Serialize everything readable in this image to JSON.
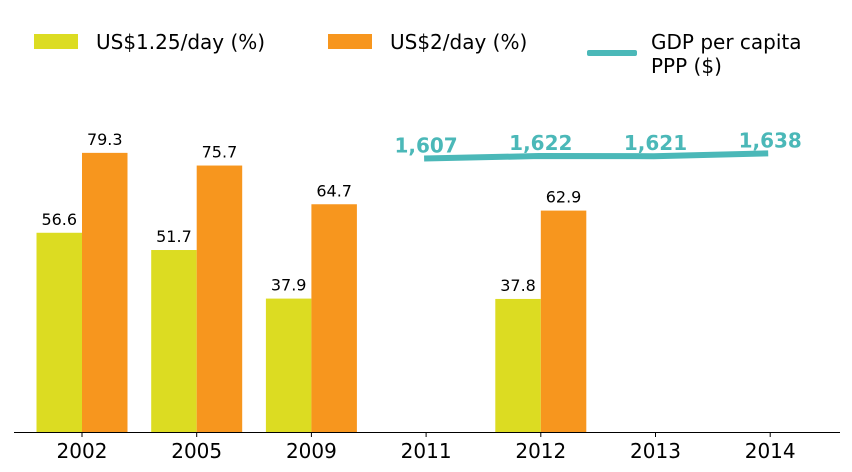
{
  "chart_data": {
    "type": "bar",
    "categories": [
      "2002",
      "2005",
      "2009",
      "2011",
      "2012",
      "2013",
      "2014"
    ],
    "series": [
      {
        "name": "US$1.25/day (%)",
        "kind": "bar",
        "color": "#dcdc22",
        "values": [
          56.6,
          51.7,
          37.9,
          null,
          37.8,
          null,
          null
        ],
        "labels": [
          "56.6",
          "51.7",
          "37.9",
          "",
          "37.8",
          "",
          ""
        ]
      },
      {
        "name": "US$2/day (%)",
        "kind": "bar",
        "color": "#f7961e",
        "values": [
          79.3,
          75.7,
          64.7,
          null,
          62.9,
          null,
          null
        ],
        "labels": [
          "79.3",
          "75.7",
          "64.7",
          "",
          "62.9",
          "",
          ""
        ]
      },
      {
        "name": "GDP per capita\nPPP ($)",
        "kind": "line",
        "color": "#4bb8b8",
        "values": [
          null,
          null,
          null,
          1607,
          1622,
          1621,
          1638
        ],
        "labels": [
          "",
          "",
          "",
          "1,607",
          "1,622",
          "1,621",
          "1,638"
        ]
      }
    ],
    "bar_ylim": [
      0,
      120
    ],
    "line_ylim": [
      1000,
      1700
    ],
    "legend_position": "top"
  }
}
